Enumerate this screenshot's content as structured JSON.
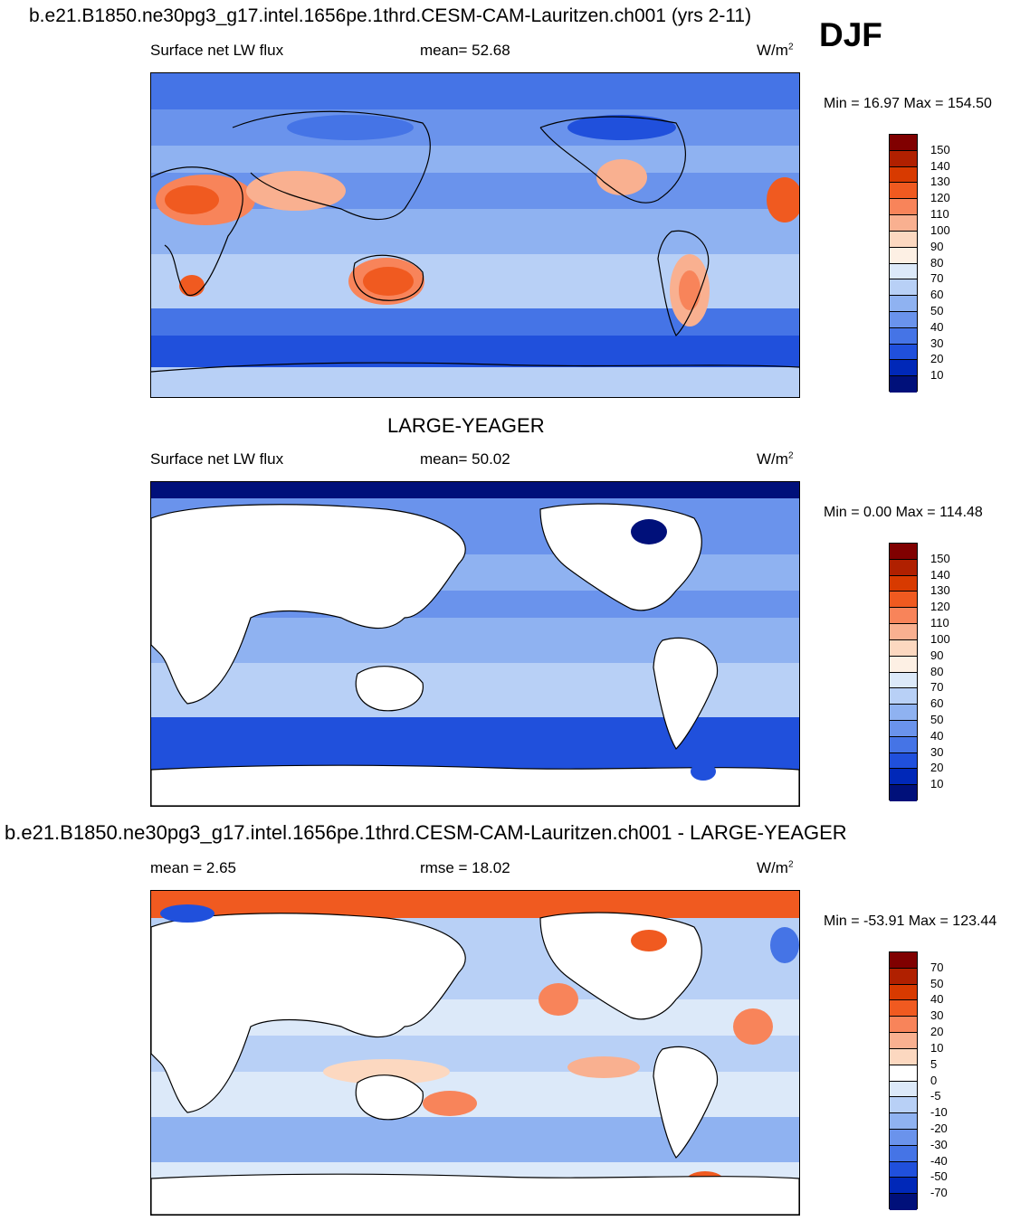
{
  "header": {
    "run_title": "b.e21.B1850.ne30pg3_g17.intel.1656pe.1thrd.CESM-CAM-Lauritzen.ch001 (yrs 2-11)",
    "season": "DJF"
  },
  "panels": [
    {
      "id": "model",
      "subtitle": "",
      "left_label": "Surface net LW flux",
      "center_label": "mean=  52.68",
      "units": "W/m",
      "units_sup": "2",
      "minmax": "Min =  16.97 Max = 154.50",
      "colorbar_ticks": [
        "150",
        "140",
        "130",
        "120",
        "110",
        "100",
        "90",
        "80",
        "70",
        "60",
        "50",
        "40",
        "30",
        "20",
        "10"
      ]
    },
    {
      "id": "obs",
      "subtitle": "LARGE-YEAGER",
      "left_label": "Surface net LW flux",
      "center_label": "mean=  50.02",
      "units": "W/m",
      "units_sup": "2",
      "minmax": "Min =   0.00 Max = 114.48",
      "colorbar_ticks": [
        "150",
        "140",
        "130",
        "120",
        "110",
        "100",
        "90",
        "80",
        "70",
        "60",
        "50",
        "40",
        "30",
        "20",
        "10"
      ]
    },
    {
      "id": "diff",
      "subtitle": "b.e21.B1850.ne30pg3_g17.intel.1656pe.1thrd.CESM-CAM-Lauritzen.ch001 - LARGE-YEAGER",
      "left_label": "mean =   2.65",
      "center_label": "rmse =  18.02",
      "units": "W/m",
      "units_sup": "2",
      "minmax": "Min = -53.91 Max = 123.44",
      "colorbar_ticks": [
        "70",
        "50",
        "40",
        "30",
        "20",
        "10",
        "5",
        "0",
        "-5",
        "-10",
        "-20",
        "-30",
        "-40",
        "-50",
        "-70"
      ]
    }
  ],
  "colors": {
    "abs_scale": [
      "#800000",
      "#b02000",
      "#d83a00",
      "#f05a20",
      "#f8845a",
      "#f9b090",
      "#fcd8c0",
      "#fdf0e4",
      "#dce9f9",
      "#b8d0f6",
      "#8fb2f1",
      "#6a93ec",
      "#4574e6",
      "#2050dc",
      "#0028b8",
      "#00107a"
    ],
    "diff_scale": [
      "#800000",
      "#b02000",
      "#d83a00",
      "#f05a20",
      "#f8845a",
      "#f9b090",
      "#fcd8c0",
      "#ffffff",
      "#dce9f9",
      "#b8d0f6",
      "#8fb2f1",
      "#6a93ec",
      "#4574e6",
      "#2050dc",
      "#0028b8",
      "#00107a"
    ],
    "land_mask": "#ffffff",
    "coast": "#000000"
  }
}
